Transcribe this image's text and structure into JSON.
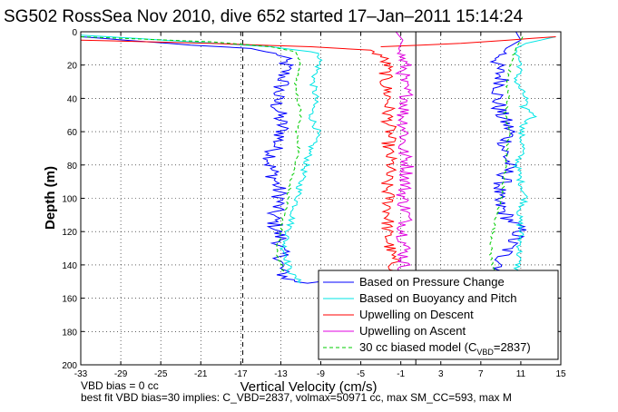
{
  "chart_data": {
    "type": "line",
    "title": "SG502 RossSea Nov 2010, dive 652 started 17–Jan–2011 15:14:24",
    "xlabel": "Vertical Velocity (cm/s)",
    "ylabel": "Depth (m)",
    "xlim": [
      -33,
      15
    ],
    "ylim": [
      200,
      0
    ],
    "y_reversed": true,
    "grid": true,
    "legend_position": "bottom-right",
    "x_ticks": [
      -33,
      -29,
      -25,
      -21,
      -17,
      -13,
      -9,
      -5,
      -1,
      3,
      7,
      11,
      15
    ],
    "y_ticks": [
      0,
      20,
      40,
      60,
      80,
      100,
      120,
      140,
      160,
      180,
      200
    ],
    "reference_lines": [
      {
        "style": "dashed",
        "color": "#000000",
        "x": -16.8
      },
      {
        "style": "solid",
        "color": "#000000",
        "x": 0.5
      }
    ],
    "series": [
      {
        "name": "Based on Pressure Change",
        "color": "#0000ff",
        "style": "solid",
        "panels": [
          {
            "x": [
              -33,
              -22,
              -16,
              -13,
              -12.5,
              -12.8,
              -13.5,
              -13.2,
              -12.8,
              -13.6,
              -14.1,
              -13.5,
              -13.0,
              -13.8,
              -13.4,
              -12.9,
              -13.2,
              -12.8,
              -13.1,
              -12.9,
              -12.4,
              -11.5,
              -10.0,
              -9.0
            ],
            "y": [
              3,
              8,
              10,
              14,
              20,
              30,
              40,
              50,
              60,
              70,
              80,
              90,
              100,
              110,
              120,
              125,
              130,
              135,
              140,
              145,
              148,
              150,
              151,
              150
            ]
          },
          {
            "x": [
              10.5,
              11,
              9.5,
              9.0,
              8.5,
              9.2,
              8.6,
              9.0,
              10.0,
              9.3,
              9.8,
              9.2,
              8.4,
              9.5,
              11.0,
              10.2,
              9.8,
              9.2,
              9.1,
              9.0
            ],
            "y": [
              0,
              5,
              10,
              15,
              20,
              30,
              40,
              50,
              60,
              70,
              80,
              90,
              100,
              110,
              120,
              125,
              130,
              135,
              140,
              145
            ]
          }
        ]
      },
      {
        "name": "Based on Buoyancy and Pitch",
        "color": "#00e5e5",
        "style": "solid",
        "panels": [
          {
            "x": [
              -33,
              -22,
              -14,
              -10,
              -9,
              -9.2,
              -9.8,
              -9.5,
              -10.0,
              -9.3,
              -10.0,
              -10.5,
              -11.0,
              -11.3,
              -11.8,
              -12.2,
              -12.5,
              -12.7,
              -12.4,
              -12.3,
              -12.0,
              -11.5,
              -11.0
            ],
            "y": [
              2,
              6,
              9,
              12,
              14,
              20,
              30,
              40,
              50,
              60,
              70,
              80,
              90,
              100,
              110,
              120,
              125,
              130,
              135,
              140,
              145,
              148,
              151
            ]
          },
          {
            "x": [
              14.5,
              11.5,
              10.5,
              11.0,
              10.5,
              11.5,
              11.2,
              12.5,
              11.4,
              11.0,
              11.2,
              10.6,
              11.0,
              11.5,
              10.8,
              11.0,
              10.9,
              10.7,
              10.5
            ],
            "y": [
              3,
              7,
              10,
              20,
              30,
              40,
              45,
              50,
              55,
              60,
              70,
              80,
              90,
              100,
              110,
              120,
              130,
              140,
              145
            ]
          }
        ]
      },
      {
        "name": "Upwelling on Descent",
        "color": "#ff0000",
        "style": "solid",
        "panels": [
          {
            "x": [
              -33,
              -20,
              -10,
              -4,
              -3.0,
              -2.4,
              -2.6,
              -2.2,
              -2.3,
              -2.1,
              -2.3,
              -2.0,
              -2.5,
              -2.2,
              -2.2,
              -2.4,
              -2.1,
              -1.9,
              -1.7,
              -1.5
            ],
            "y": [
              5,
              7,
              9,
              11,
              14,
              20,
              30,
              40,
              50,
              60,
              70,
              80,
              90,
              100,
              110,
              120,
              130,
              135,
              140,
              145
            ]
          },
          {
            "x": [
              -3,
              5,
              14.5
            ],
            "y": [
              9,
              7,
              3
            ]
          }
        ]
      },
      {
        "name": "Upwelling on Ascent",
        "color": "#e000e0",
        "style": "solid",
        "panels": [
          {
            "x": [
              -1.5,
              -0.8,
              -1.2,
              -0.6,
              -0.9,
              -0.3,
              -0.8,
              -0.5,
              -0.9,
              -0.3,
              -0.5,
              -0.8,
              -0.4,
              -0.7,
              -0.6,
              -0.7,
              -0.5,
              -0.3
            ],
            "y": [
              0,
              5,
              10,
              20,
              30,
              40,
              50,
              60,
              70,
              80,
              90,
              100,
              110,
              120,
              130,
              140,
              145,
              148
            ]
          }
        ]
      },
      {
        "name": "30 cc biased model (C_VBD=2837)",
        "name_main": "30 cc biased model (C",
        "name_sub": "VBD",
        "name_end": "=2837)",
        "color": "#00cc00",
        "style": "dashed",
        "panels": [
          {
            "x": [
              -33,
              -20,
              -14,
              -11.5,
              -11.0,
              -11.6,
              -11.3,
              -11.0,
              -11.4,
              -11.2,
              -11.5,
              -12.0,
              -12.3,
              -12.7,
              -13.0,
              -13.2,
              -13.5,
              -13.3,
              -13.0,
              -12.6
            ],
            "y": [
              3,
              6,
              9,
              12,
              20,
              30,
              40,
              50,
              60,
              70,
              80,
              90,
              100,
              110,
              120,
              125,
              130,
              135,
              140,
              145
            ]
          },
          {
            "x": [
              11.2,
              10.5,
              10.0,
              9.6,
              9.8,
              9.4,
              9.9,
              9.6,
              9.5,
              9.3,
              9.0,
              8.6,
              8.2,
              8.0,
              8.0,
              8.2,
              8.6
            ],
            "y": [
              3,
              10,
              20,
              30,
              40,
              50,
              60,
              70,
              80,
              90,
              100,
              110,
              120,
              130,
              135,
              140,
              145
            ]
          }
        ]
      }
    ],
    "annotations": [
      "VBD bias = 0 cc",
      "best fit VBD bias=30 implies: C_VBD=2837, volmax=50971 cc, max SM_CC=593, max M"
    ]
  }
}
